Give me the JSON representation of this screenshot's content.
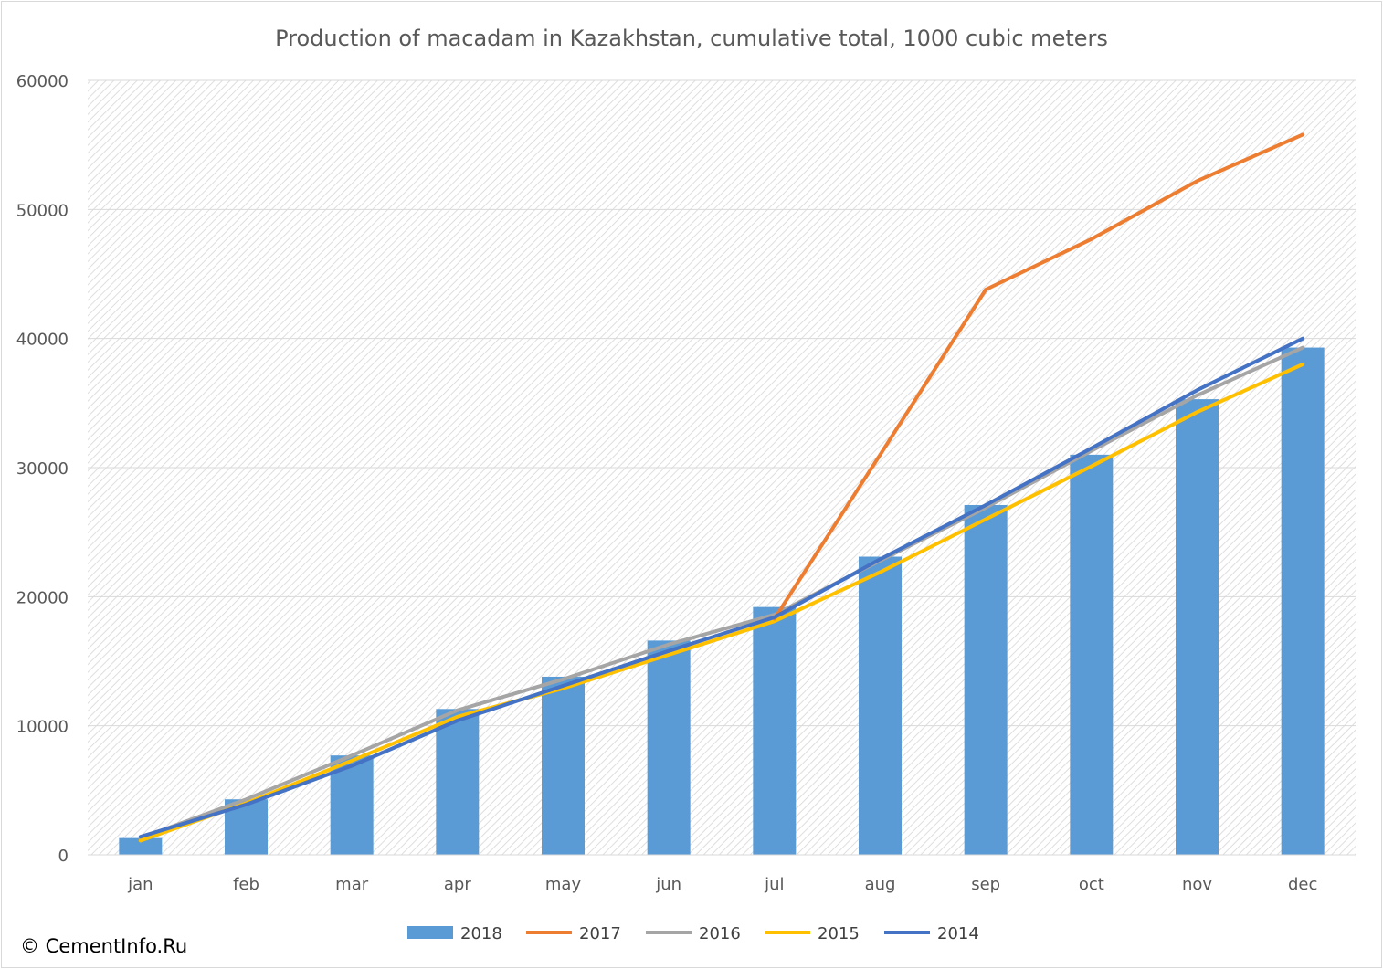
{
  "chart_data": {
    "type": "bar",
    "title": "Production of macadam in Kazakhstan, cumulative total, 1000 cubic meters",
    "xlabel": "",
    "ylabel": "",
    "categories": [
      "jan",
      "feb",
      "mar",
      "apr",
      "may",
      "jun",
      "jul",
      "aug",
      "sep",
      "oct",
      "nov",
      "dec"
    ],
    "ylim": [
      0,
      60000
    ],
    "yticks": [
      "0",
      "10000",
      "20000",
      "30000",
      "40000",
      "50000",
      "60000"
    ],
    "grid": true,
    "legend_position": "bottom",
    "series": [
      {
        "name": "2018",
        "type": "bar",
        "color": "#5b9bd5",
        "values": [
          1300,
          4300,
          7700,
          11300,
          13800,
          16600,
          19200,
          23100,
          27100,
          31000,
          35300,
          39300
        ]
      },
      {
        "name": "2017",
        "type": "line",
        "color": "#ed7d31",
        "values": [
          null,
          null,
          null,
          null,
          null,
          null,
          18300,
          31000,
          43800,
          47700,
          52200,
          55800
        ]
      },
      {
        "name": "2016",
        "type": "line",
        "color": "#a5a5a5",
        "values": [
          1300,
          4300,
          7700,
          11200,
          13600,
          16300,
          18600,
          22800,
          26900,
          31300,
          35600,
          39300
        ]
      },
      {
        "name": "2015",
        "type": "line",
        "color": "#ffc000",
        "values": [
          1100,
          4000,
          7300,
          10700,
          12900,
          15500,
          18100,
          21900,
          26000,
          30100,
          34300,
          38000
        ]
      },
      {
        "name": "2014",
        "type": "line",
        "color": "#4472c4",
        "values": [
          1400,
          3900,
          6900,
          10400,
          13100,
          15800,
          18400,
          22900,
          27100,
          31500,
          36000,
          40000
        ]
      }
    ]
  },
  "credit": "© CementInfo.Ru"
}
